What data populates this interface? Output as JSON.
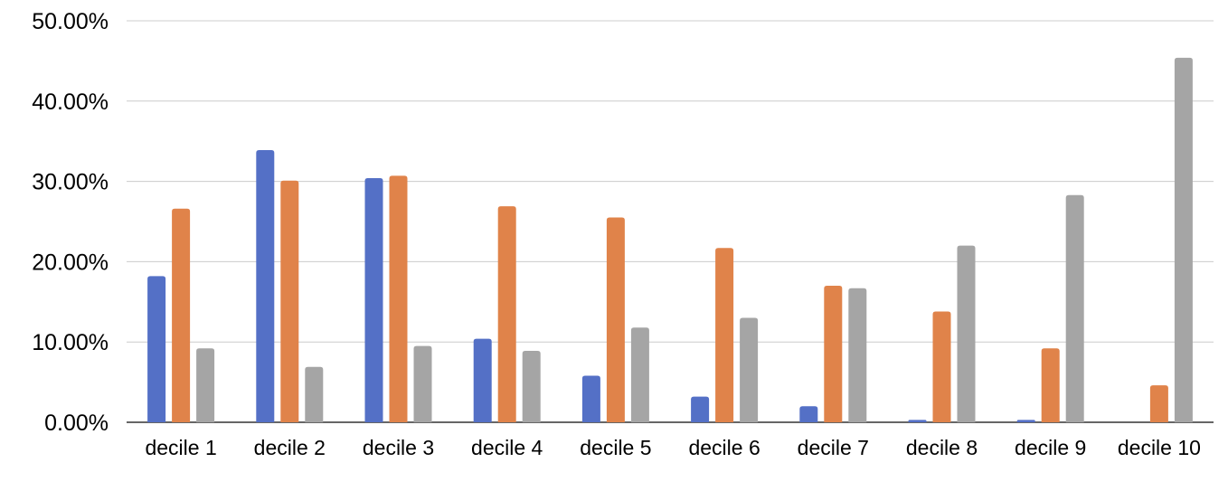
{
  "chart_data": {
    "type": "bar",
    "categories": [
      "decile 1",
      "decile 2",
      "decile 3",
      "decile 4",
      "decile 5",
      "decile 6",
      "decile 7",
      "decile 8",
      "decile 9",
      "decile 10"
    ],
    "series": [
      {
        "color": "#5470C6",
        "values": [
          18.2,
          33.9,
          30.4,
          10.4,
          5.8,
          3.2,
          2.0,
          0.3,
          0.3,
          0.0
        ]
      },
      {
        "color": "#E0834A",
        "values": [
          26.6,
          30.1,
          30.7,
          26.9,
          25.5,
          21.7,
          17.0,
          13.8,
          9.2,
          4.6
        ]
      },
      {
        "color": "#A5A5A5",
        "values": [
          9.2,
          6.9,
          9.5,
          8.9,
          11.8,
          13.0,
          16.7,
          22.0,
          28.3,
          45.4
        ]
      }
    ],
    "y_tick_labels": [
      "0.00%",
      "10.00%",
      "20.00%",
      "30.00%",
      "40.00%",
      "50.00%"
    ],
    "ylim": [
      0,
      50
    ],
    "grid": true,
    "legend": "none"
  }
}
